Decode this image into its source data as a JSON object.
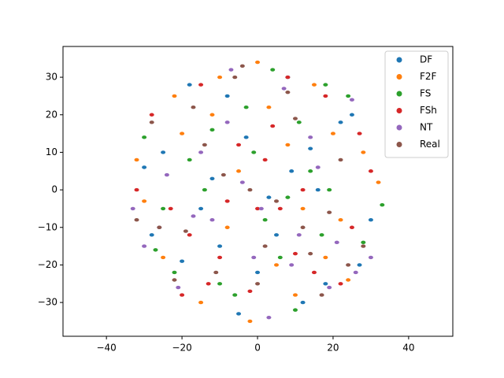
{
  "chart_data": {
    "type": "scatter",
    "xlim": [
      -51.5,
      51.7
    ],
    "ylim": [
      -39,
      38.2
    ],
    "xticks": [
      {
        "value": -40,
        "label": "−40"
      },
      {
        "value": -20,
        "label": "−20"
      },
      0,
      20,
      40
    ],
    "yticks": [
      {
        "value": -30,
        "label": "−30"
      },
      {
        "value": -20,
        "label": "−20"
      },
      {
        "value": -10,
        "label": "−10"
      },
      0,
      10,
      20,
      30
    ],
    "legend": "upper right",
    "series": [
      {
        "name": "DF",
        "color": "#1f77b4",
        "x": [
          -3,
          9,
          16,
          -20,
          -25,
          12,
          -8,
          5,
          22,
          -15,
          30,
          -30,
          0,
          18,
          -12,
          25,
          -5,
          8,
          -28,
          14,
          3,
          -18,
          27,
          -10
        ],
        "y": [
          14,
          5,
          0,
          -19,
          10,
          -30,
          25,
          -12,
          18,
          -5,
          -8,
          6,
          -22,
          -25,
          3,
          20,
          -33,
          30,
          -12,
          11,
          -2,
          28,
          -20,
          -15
        ]
      },
      {
        "name": "F2F",
        "color": "#ff7f0e",
        "x": [
          0,
          -20,
          10,
          22,
          -12,
          5,
          -30,
          15,
          -5,
          28,
          -25,
          8,
          -15,
          18,
          -8,
          32,
          -2,
          12,
          -22,
          24,
          -32,
          3,
          -10,
          20
        ],
        "y": [
          34,
          15,
          -28,
          -8,
          20,
          -20,
          -3,
          28,
          5,
          10,
          -18,
          12,
          -30,
          -18,
          -10,
          2,
          -35,
          -5,
          25,
          -24,
          8,
          22,
          30,
          15
        ]
      },
      {
        "name": "FS",
        "color": "#2ca02c",
        "x": [
          -10,
          18,
          -25,
          6,
          14,
          -3,
          28,
          -18,
          2,
          -30,
          10,
          -14,
          24,
          -6,
          17,
          -22,
          33,
          4,
          -12,
          8,
          -27,
          19,
          -1,
          11
        ],
        "y": [
          -25,
          28,
          -5,
          -18,
          5,
          22,
          -14,
          8,
          -8,
          14,
          -32,
          0,
          25,
          -28,
          -12,
          -22,
          -4,
          32,
          16,
          -2,
          -16,
          0,
          10,
          18
        ]
      },
      {
        "name": "FSh",
        "color": "#d62728",
        "x": [
          4,
          -23,
          10,
          -8,
          18,
          -15,
          25,
          -2,
          12,
          -28,
          6,
          -18,
          30,
          -5,
          15,
          -10,
          22,
          -32,
          0,
          -20,
          8,
          27,
          -13,
          2
        ],
        "y": [
          17,
          -5,
          -17,
          -3,
          25,
          28,
          -10,
          -27,
          0,
          20,
          -5,
          -12,
          5,
          12,
          -22,
          -18,
          -25,
          0,
          -5,
          -28,
          30,
          15,
          -25,
          8
        ]
      },
      {
        "name": "NT",
        "color": "#9467bd",
        "x": [
          -33,
          -8,
          21,
          9,
          -17,
          3,
          -26,
          14,
          -4,
          30,
          -12,
          25,
          -21,
          7,
          -1,
          16,
          -30,
          11,
          -7,
          -15,
          26,
          1,
          -24,
          19
        ],
        "y": [
          -5,
          18,
          -14,
          -20,
          -7,
          -34,
          -10,
          14,
          2,
          -18,
          -8,
          24,
          -26,
          27,
          -18,
          6,
          -15,
          -12,
          32,
          10,
          -22,
          -5,
          4,
          -26
        ]
      },
      {
        "name": "Real",
        "color": "#8c564b",
        "x": [
          10,
          -19,
          2,
          -11,
          14,
          -26,
          22,
          -6,
          5,
          -14,
          28,
          -2,
          17,
          -22,
          8,
          -32,
          12,
          -9,
          24,
          -17,
          0,
          -4,
          19,
          -28
        ],
        "y": [
          19,
          -11,
          -15,
          -22,
          -17,
          -10,
          8,
          30,
          -3,
          12,
          -15,
          0,
          -28,
          -24,
          26,
          -8,
          -10,
          4,
          -20,
          22,
          -25,
          33,
          -6,
          18
        ]
      }
    ]
  }
}
